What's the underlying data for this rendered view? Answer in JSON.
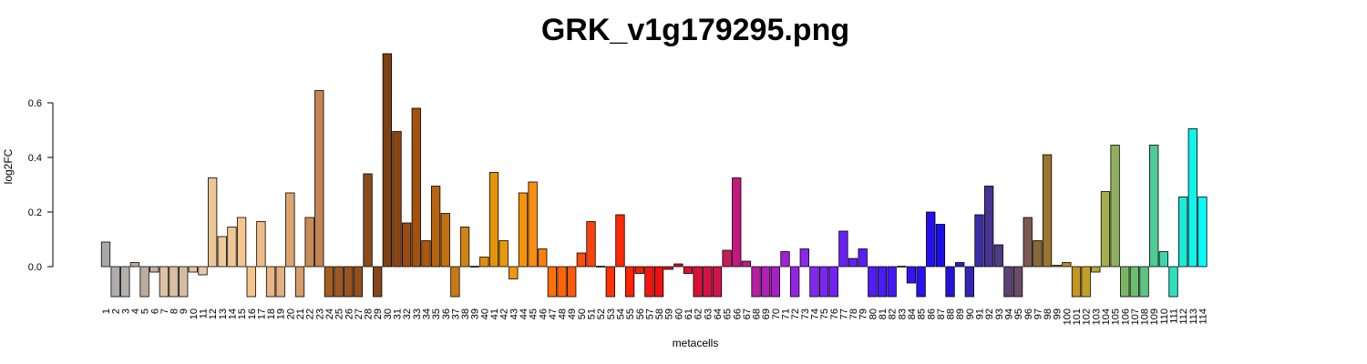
{
  "chart_data": {
    "type": "bar",
    "title": "GRK_v1g179295.png",
    "xlabel": "metacells",
    "ylabel": "log2FC",
    "yticks": [
      0.0,
      0.2,
      0.4,
      0.6
    ],
    "ytick_labels": [
      "0.0",
      "0.2",
      "0.4",
      "0.6"
    ],
    "ylim": [
      -0.11,
      0.78
    ],
    "grid": false,
    "categories": [
      "1",
      "2",
      "3",
      "4",
      "5",
      "6",
      "7",
      "8",
      "9",
      "10",
      "11",
      "12",
      "13",
      "14",
      "15",
      "16",
      "17",
      "18",
      "19",
      "20",
      "21",
      "22",
      "23",
      "24",
      "25",
      "26",
      "27",
      "28",
      "29",
      "30",
      "31",
      "32",
      "33",
      "34",
      "35",
      "36",
      "37",
      "38",
      "39",
      "40",
      "41",
      "42",
      "43",
      "44",
      "45",
      "46",
      "47",
      "48",
      "49",
      "50",
      "51",
      "52",
      "53",
      "54",
      "55",
      "56",
      "57",
      "58",
      "59",
      "60",
      "61",
      "62",
      "63",
      "64",
      "65",
      "66",
      "67",
      "68",
      "69",
      "70",
      "71",
      "72",
      "73",
      "74",
      "75",
      "76",
      "77",
      "78",
      "79",
      "80",
      "81",
      "82",
      "83",
      "84",
      "85",
      "86",
      "87",
      "88",
      "89",
      "90",
      "91",
      "92",
      "93",
      "94",
      "95",
      "96",
      "97",
      "98",
      "99",
      "100",
      "101",
      "102",
      "103",
      "104",
      "105",
      "106",
      "107",
      "108",
      "109",
      "110",
      "111",
      "112",
      "113",
      "114"
    ],
    "values": [
      0.09,
      -0.11,
      -0.11,
      0.015,
      -0.11,
      -0.02,
      -0.11,
      -0.11,
      -0.11,
      -0.02,
      -0.03,
      0.325,
      0.11,
      0.145,
      0.18,
      -0.11,
      0.165,
      -0.11,
      -0.11,
      0.27,
      -0.11,
      0.18,
      0.645,
      -0.11,
      -0.11,
      -0.11,
      -0.11,
      0.34,
      -0.11,
      0.78,
      0.495,
      0.16,
      0.58,
      0.095,
      0.295,
      0.195,
      -0.11,
      0.145,
      0.0,
      0.035,
      0.345,
      0.095,
      -0.045,
      0.27,
      0.31,
      0.065,
      -0.11,
      -0.11,
      -0.11,
      0.05,
      0.165,
      0.0,
      -0.11,
      0.19,
      -0.11,
      -0.025,
      -0.11,
      -0.11,
      -0.01,
      0.01,
      -0.025,
      -0.11,
      -0.11,
      -0.11,
      0.06,
      0.325,
      0.02,
      -0.11,
      -0.11,
      -0.11,
      0.055,
      -0.11,
      0.065,
      -0.11,
      -0.11,
      -0.11,
      0.13,
      0.03,
      0.065,
      -0.11,
      -0.11,
      -0.11,
      0.0,
      -0.06,
      -0.11,
      0.2,
      0.155,
      -0.11,
      0.015,
      -0.11,
      0.19,
      0.295,
      0.08,
      -0.11,
      -0.11,
      0.18,
      0.095,
      0.41,
      0.005,
      0.015,
      -0.11,
      -0.11,
      -0.02,
      0.275,
      0.445,
      -0.11,
      -0.11,
      -0.11,
      0.445,
      0.055,
      -0.11,
      0.255,
      0.505,
      0.255
    ],
    "colors": [
      "#a9a9a9",
      "#adadad",
      "#b3b0ac",
      "#b7aea4",
      "#bdac9d",
      "#c3b0a2",
      "#ddc2a6",
      "#d9bfa4",
      "#d6bca4",
      "#e2c2a0",
      "#eac9a8",
      "#ebc796",
      "#edc99a",
      "#f1c895",
      "#f5c58e",
      "#f6c58c",
      "#f0bc85",
      "#e9b584",
      "#e3b080",
      "#dca672",
      "#d49d6a",
      "#c98b56",
      "#c28553",
      "#a55f25",
      "#9d5925",
      "#985521",
      "#92501d",
      "#8a4a1c",
      "#86451a",
      "#7d4112",
      "#8b4513",
      "#9a4b14",
      "#a0520f",
      "#a8590d",
      "#b5650f",
      "#c27010",
      "#c97a12",
      "#cf8418",
      "#d6890f",
      "#dd8f0c",
      "#e3940a",
      "#ea980c",
      "#ef9809",
      "#f6950a",
      "#fa8d0f",
      "#fb7e0b",
      "#fd700b",
      "#ff6507",
      "#ff5a0a",
      "#ff4e05",
      "#ff420a",
      "#ff3908",
      "#ff3205",
      "#ff2a05",
      "#ff2205",
      "#fb1a0a",
      "#f41510",
      "#ed1014",
      "#e80c1a",
      "#e30b26",
      "#df0d30",
      "#da0f3a",
      "#d61244",
      "#d1144e",
      "#c81a5e",
      "#c4187f",
      "#bf1a90",
      "#b81ea4",
      "#b01fb7",
      "#a81fc7",
      "#9f20d6",
      "#9525e4",
      "#8c28ea",
      "#8427ef",
      "#7b25f3",
      "#7222f6",
      "#6a20f7",
      "#621ff8",
      "#5a1ef8",
      "#521cf8",
      "#4a1af8",
      "#4218f7",
      "#3a16f5",
      "#3214f2",
      "#2a12f0",
      "#2210ee",
      "#1a0fe8",
      "#2415d5",
      "#2c1fc5",
      "#3426b5",
      "#3c2da6",
      "#463394",
      "#503a84",
      "#5a4274",
      "#6a4c66",
      "#7a5a50",
      "#8a6838",
      "#9a7530",
      "#aa7f25",
      "#b88a20",
      "#c4951f",
      "#c0a028",
      "#b4a83a",
      "#a4ae4c",
      "#8eb05a",
      "#7ab662",
      "#6ebc70",
      "#5ec482",
      "#4ecc96",
      "#3ed6ac",
      "#2ee0c2",
      "#1eeaD8",
      "#10f4ec",
      "#05fbf6"
    ]
  }
}
